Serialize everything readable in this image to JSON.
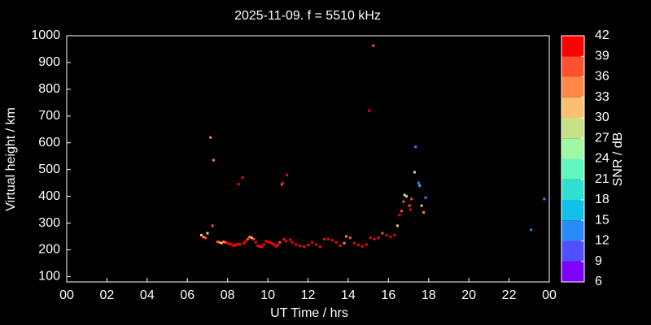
{
  "chart_data": {
    "type": "scatter",
    "title": "2025-11-09. f = 5510 kHz",
    "xlabel": "UT Time / hrs",
    "ylabel": "Virtual height / km",
    "xlim": [
      0,
      24
    ],
    "xticks": [
      {
        "value": 0,
        "label": "00"
      },
      {
        "value": 2,
        "label": "02"
      },
      {
        "value": 4,
        "label": "04"
      },
      {
        "value": 6,
        "label": "06"
      },
      {
        "value": 8,
        "label": "08"
      },
      10,
      12,
      14,
      16,
      18,
      20,
      22,
      {
        "value": 24,
        "label": "00"
      }
    ],
    "ylim": [
      80,
      1000
    ],
    "yticks": [
      100,
      200,
      300,
      400,
      500,
      600,
      700,
      800,
      900,
      1000
    ],
    "colorbar": {
      "label": "SNR / dB",
      "clim": [
        6,
        42
      ],
      "ticks": [
        6,
        9,
        12,
        15,
        18,
        21,
        24,
        27,
        30,
        33,
        36,
        39,
        42
      ],
      "colors": [
        "#8000ff",
        "#5050ff",
        "#2a8afa",
        "#10c0e8",
        "#30e0d0",
        "#60f8c0",
        "#a0f8a0",
        "#c8e088",
        "#f8c070",
        "#ff8848",
        "#ff5030",
        "#ff0000"
      ]
    },
    "series": [
      {
        "x": [
          6.7,
          6.8,
          6.9,
          7.0,
          7.15,
          7.25,
          7.3,
          7.5,
          7.6,
          7.7,
          7.8,
          7.9,
          8.0,
          8.1,
          8.2,
          8.3,
          8.4,
          8.5,
          8.55,
          8.6,
          8.75,
          8.8,
          8.9,
          9.0,
          9.1,
          9.2,
          9.3,
          9.4,
          9.5,
          9.6,
          9.7,
          9.8,
          9.9,
          10.0,
          10.1,
          10.2,
          10.3,
          10.4,
          10.5,
          10.6,
          10.7,
          10.75,
          10.8,
          10.9,
          10.95,
          11.1,
          11.2,
          11.4,
          11.6,
          11.8,
          12.0,
          12.2,
          12.4,
          12.6,
          12.8,
          13.0,
          13.2,
          13.4,
          13.6,
          13.8,
          13.9,
          14.1,
          14.3,
          14.5,
          14.7,
          14.9,
          15.05,
          15.1,
          15.25,
          15.3,
          15.5,
          15.7,
          15.9,
          16.1,
          16.3,
          16.45,
          16.55,
          16.65,
          16.75,
          16.8,
          16.9,
          17.05,
          17.1,
          17.15,
          17.3,
          17.35,
          17.5,
          17.55,
          17.65,
          17.75,
          17.85,
          23.1,
          23.75
        ],
        "values": [
          255,
          248,
          245,
          262,
          620,
          290,
          535,
          230,
          228,
          225,
          230,
          228,
          225,
          222,
          220,
          215,
          218,
          222,
          445,
          220,
          470,
          225,
          232,
          240,
          248,
          245,
          240,
          228,
          215,
          212,
          212,
          220,
          232,
          230,
          228,
          225,
          220,
          213,
          218,
          228,
          445,
          450,
          240,
          232,
          480,
          238,
          228,
          220,
          215,
          212,
          218,
          228,
          220,
          212,
          240,
          240,
          236,
          228,
          215,
          225,
          250,
          245,
          225,
          218,
          213,
          220,
          720,
          245,
          963,
          240,
          245,
          262,
          255,
          248,
          255,
          290,
          330,
          345,
          380,
          405,
          400,
          365,
          350,
          390,
          490,
          585,
          450,
          440,
          365,
          340,
          395,
          275,
          390
        ],
        "snr": [
          30,
          33,
          36,
          27,
          33,
          36,
          33,
          36,
          33,
          30,
          33,
          36,
          39,
          39,
          39,
          39,
          39,
          39,
          39,
          39,
          39,
          39,
          39,
          36,
          33,
          30,
          36,
          39,
          39,
          39,
          39,
          39,
          39,
          39,
          39,
          39,
          39,
          39,
          39,
          36,
          36,
          39,
          39,
          39,
          39,
          39,
          39,
          39,
          39,
          39,
          39,
          39,
          39,
          39,
          39,
          39,
          39,
          39,
          39,
          33,
          33,
          36,
          39,
          39,
          39,
          39,
          39,
          39,
          36,
          39,
          39,
          36,
          39,
          39,
          39,
          30,
          39,
          36,
          36,
          27,
          27,
          36,
          39,
          36,
          27,
          12,
          12,
          15,
          30,
          33,
          12,
          12,
          12
        ]
      }
    ]
  }
}
